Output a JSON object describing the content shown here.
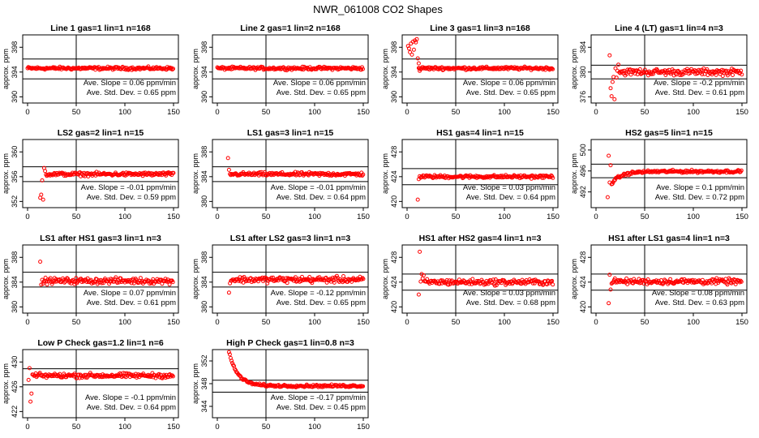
{
  "title": "NWR_061008  CO2 Shapes",
  "colors": {
    "points": "#ff0000",
    "axes": "#000000"
  },
  "chart_data": [
    {
      "type": "scatter",
      "title": "Line 1 gas=1 lin=1 n=168",
      "ylabel": "approx. ppm",
      "xlim": [
        -5,
        155
      ],
      "ylim": [
        389,
        400
      ],
      "yticks": [
        390,
        394,
        398
      ],
      "xticks": [
        0,
        50,
        100,
        150
      ],
      "vline": 50,
      "hlines": [
        396.1,
        392.9
      ],
      "slope": "Ave. Slope =  0.06  ppm/min",
      "stddev": "Ave. Std. Dev. =  0.65  ppm",
      "x_range": [
        0,
        150
      ],
      "initial": [],
      "settle": null,
      "base": 394.6,
      "noise": 0.2,
      "spike": 0
    },
    {
      "type": "scatter",
      "title": "Line 2 gas=1 lin=2 n=168",
      "ylabel": "approx. ppm",
      "xlim": [
        -5,
        155
      ],
      "ylim": [
        389,
        400
      ],
      "yticks": [
        390,
        394,
        398
      ],
      "xticks": [
        0,
        50,
        100,
        150
      ],
      "vline": 50,
      "hlines": [
        396.1,
        392.9
      ],
      "slope": "Ave. Slope =  0.06  ppm/min",
      "stddev": "Ave. Std. Dev. =  0.65  ppm",
      "x_range": [
        0,
        150
      ],
      "initial": [],
      "settle": null,
      "base": 394.6,
      "noise": 0.2,
      "spike": 0
    },
    {
      "type": "scatter",
      "title": "Line 3 gas=1 lin=3 n=168",
      "ylabel": "approx. ppm",
      "xlim": [
        -5,
        155
      ],
      "ylim": [
        389,
        400
      ],
      "yticks": [
        390,
        394,
        398
      ],
      "xticks": [
        0,
        50,
        100,
        150
      ],
      "vline": 50,
      "hlines": [
        396.1,
        392.9
      ],
      "slope": "Ave. Slope =  0.06  ppm/min",
      "stddev": "Ave. Std. Dev. =  0.65  ppm",
      "x_range": [
        12,
        150
      ],
      "initial": [
        [
          1,
          398.2
        ],
        [
          2,
          397.8
        ],
        [
          3,
          397.2
        ],
        [
          4,
          398.6
        ],
        [
          5,
          396.8
        ],
        [
          6,
          398.9
        ],
        [
          7,
          397.6
        ],
        [
          8,
          399.1
        ],
        [
          9,
          398.8
        ],
        [
          10,
          399.3
        ],
        [
          11,
          396.2
        ],
        [
          12,
          395.4
        ],
        [
          13,
          394.2
        ]
      ],
      "settle": null,
      "base": 394.6,
      "noise": 0.2,
      "spike": 0
    },
    {
      "type": "scatter",
      "title": "Line 4 (LT) gas=1 lin=4 n=3",
      "ylabel": "approx. ppm",
      "xlim": [
        -5,
        155
      ],
      "ylim": [
        375,
        386
      ],
      "yticks": [
        376,
        380,
        384
      ],
      "xticks": [
        0,
        50,
        100,
        150
      ],
      "vline": 50,
      "hlines": [
        381.1,
        378.9
      ],
      "slope": "Ave. Slope =  -0.2  ppm/min",
      "stddev": "Ave. Std. Dev. =  0.61  ppm",
      "x_range": [
        24,
        150
      ],
      "initial": [
        [
          14,
          382.7
        ],
        [
          15,
          377.4
        ],
        [
          16,
          376.1
        ],
        [
          17,
          378.4
        ],
        [
          18,
          379.2
        ],
        [
          19,
          375.6
        ],
        [
          20,
          380.6
        ],
        [
          21,
          379.1
        ],
        [
          22,
          380.2
        ],
        [
          23,
          381.2
        ]
      ],
      "settle": null,
      "base": 380.0,
      "noise": 0.45,
      "spike": 0
    },
    {
      "type": "scatter",
      "title": "LS2 gas=2 lin=1 n=15",
      "ylabel": "approx. ppm",
      "xlim": [
        -5,
        155
      ],
      "ylim": [
        351,
        362
      ],
      "yticks": [
        352,
        356,
        360
      ],
      "xticks": [
        0,
        50,
        100,
        150
      ],
      "vline": 50,
      "hlines": [
        357.6,
        355.2
      ],
      "slope": "Ave. Slope =  -0.01  ppm/min",
      "stddev": "Ave. Std. Dev. =  0.59  ppm",
      "x_range": [
        19,
        150
      ],
      "initial": [
        [
          13,
          352.6
        ],
        [
          14,
          353.1
        ],
        [
          15,
          355.4
        ],
        [
          16,
          352.3
        ],
        [
          17,
          357.4
        ],
        [
          18,
          356.9
        ]
      ],
      "settle": null,
      "base": 356.4,
      "noise": 0.25,
      "spike": 0
    },
    {
      "type": "scatter",
      "title": "LS1 gas=3 lin=1 n=15",
      "ylabel": "approx. ppm",
      "xlim": [
        -5,
        155
      ],
      "ylim": [
        379,
        390
      ],
      "yticks": [
        380,
        384,
        388
      ],
      "xticks": [
        0,
        50,
        100,
        150
      ],
      "vline": 50,
      "hlines": [
        385.6,
        383.2
      ],
      "slope": "Ave. Slope =  -0.01  ppm/min",
      "stddev": "Ave. Std. Dev. =  0.64  ppm",
      "x_range": [
        13,
        150
      ],
      "initial": [
        [
          11,
          387.0
        ],
        [
          12,
          385.1
        ]
      ],
      "settle": null,
      "base": 384.4,
      "noise": 0.25,
      "spike": 0
    },
    {
      "type": "scatter",
      "title": "HS1 gas=4 lin=1 n=15",
      "ylabel": "approx. ppm",
      "xlim": [
        -5,
        155
      ],
      "ylim": [
        419,
        430
      ],
      "yticks": [
        420,
        424,
        428
      ],
      "xticks": [
        0,
        50,
        100,
        150
      ],
      "vline": 50,
      "hlines": [
        425.3,
        422.7
      ],
      "slope": "Ave. Slope =  0.03  ppm/min",
      "stddev": "Ave. Std. Dev. =  0.64  ppm",
      "x_range": [
        13,
        150
      ],
      "initial": [
        [
          11,
          420.3
        ],
        [
          12,
          423.6
        ]
      ],
      "settle": null,
      "base": 424.0,
      "noise": 0.22,
      "spike": 0
    },
    {
      "type": "scatter",
      "title": "HS2 gas=5 lin=1 n=15",
      "ylabel": "approx. ppm",
      "xlim": [
        -5,
        155
      ],
      "ylim": [
        489,
        502
      ],
      "yticks": [
        492,
        496,
        500
      ],
      "xticks": [
        0,
        50,
        100,
        150
      ],
      "vline": 50,
      "hlines": [
        497.3,
        494.7
      ],
      "slope": "Ave. Slope =  0.1  ppm/min",
      "stddev": "Ave. Std. Dev. =  0.72  ppm",
      "x_range": [
        16,
        150
      ],
      "initial": [
        [
          12,
          491.0
        ],
        [
          13,
          498.9
        ],
        [
          14,
          493.8
        ],
        [
          15,
          497.1
        ]
      ],
      "settle": {
        "from": 493.6,
        "tau": 10
      },
      "base": 495.9,
      "noise": 0.22,
      "spike": 0
    },
    {
      "type": "scatter",
      "title": "LS1 after HS1 gas=3 lin=1 n=3",
      "ylabel": "approx. ppm",
      "xlim": [
        -5,
        155
      ],
      "ylim": [
        379,
        390
      ],
      "yticks": [
        380,
        384,
        388
      ],
      "xticks": [
        0,
        50,
        100,
        150
      ],
      "vline": 50,
      "hlines": [
        385.6,
        383.2
      ],
      "slope": "Ave. Slope =  0.07  ppm/min",
      "stddev": "Ave. Std. Dev. =  0.61  ppm",
      "x_range": [
        15,
        150
      ],
      "initial": [
        [
          13,
          387.3
        ],
        [
          14,
          383.6
        ]
      ],
      "settle": null,
      "base": 384.2,
      "noise": 0.4,
      "spike": 0
    },
    {
      "type": "scatter",
      "title": "LS1 after LS2 gas=3 lin=1 n=3",
      "ylabel": "approx. ppm",
      "xlim": [
        -5,
        155
      ],
      "ylim": [
        379,
        390
      ],
      "yticks": [
        380,
        384,
        388
      ],
      "xticks": [
        0,
        50,
        100,
        150
      ],
      "vline": 50,
      "hlines": [
        385.6,
        383.2
      ],
      "slope": "Ave. Slope =  -0.12  ppm/min",
      "stddev": "Ave. Std. Dev. =  0.65  ppm",
      "x_range": [
        14,
        150
      ],
      "initial": [
        [
          12,
          382.3
        ],
        [
          13,
          383.8
        ]
      ],
      "settle": null,
      "base": 384.4,
      "noise": 0.42,
      "spike": 0
    },
    {
      "type": "scatter",
      "title": "HS1 after HS2 gas=4 lin=1 n=3",
      "ylabel": "approx. ppm",
      "xlim": [
        -5,
        155
      ],
      "ylim": [
        419,
        430
      ],
      "yticks": [
        420,
        424,
        428
      ],
      "xticks": [
        0,
        50,
        100,
        150
      ],
      "vline": 50,
      "hlines": [
        425.3,
        422.7
      ],
      "slope": "Ave. Slope =  0.03  ppm/min",
      "stddev": "Ave. Std. Dev. =  0.68  ppm",
      "x_range": [
        18,
        150
      ],
      "initial": [
        [
          12,
          422.0
        ],
        [
          13,
          428.9
        ],
        [
          14,
          424.1
        ],
        [
          15,
          425.3
        ],
        [
          16,
          424.6
        ],
        [
          17,
          425.1
        ]
      ],
      "settle": null,
      "base": 424.0,
      "noise": 0.4,
      "spike": 0
    },
    {
      "type": "scatter",
      "title": "HS1 after LS1 gas=4 lin=1 n=3",
      "ylabel": "approx. ppm",
      "xlim": [
        -5,
        155
      ],
      "ylim": [
        419,
        430
      ],
      "yticks": [
        420,
        424,
        428
      ],
      "xticks": [
        0,
        50,
        100,
        150
      ],
      "vline": 50,
      "hlines": [
        425.3,
        422.7
      ],
      "slope": "Ave. Slope =  0.08  ppm/min",
      "stddev": "Ave. Std. Dev. =  0.63  ppm",
      "x_range": [
        16,
        150
      ],
      "initial": [
        [
          13,
          420.6
        ],
        [
          14,
          425.2
        ],
        [
          15,
          422.8
        ]
      ],
      "settle": null,
      "base": 424.1,
      "noise": 0.38,
      "spike": 0
    },
    {
      "type": "scatter",
      "title": "Low P Check gas=1.2 lin=1 n=6",
      "ylabel": "approx. ppm",
      "xlim": [
        -5,
        155
      ],
      "ylim": [
        421,
        432
      ],
      "yticks": [
        422,
        426,
        430
      ],
      "xticks": [
        0,
        50,
        100,
        150
      ],
      "vline": 50,
      "hlines": [
        428.9,
        426.3
      ],
      "slope": "Ave. Slope =  -0.1  ppm/min",
      "stddev": "Ave. Std. Dev. =  0.64  ppm",
      "x_range": [
        5,
        150
      ],
      "initial": [
        [
          1,
          427.1
        ],
        [
          2,
          429.0
        ],
        [
          3,
          423.6
        ],
        [
          4,
          424.9
        ]
      ],
      "settle": null,
      "base": 427.8,
      "noise": 0.32,
      "spike": 0
    },
    {
      "type": "scatter",
      "title": "High P Check gas=1 lin=0.8 n=3",
      "ylabel": "approx. ppm",
      "xlim": [
        -5,
        155
      ],
      "ylim": [
        342,
        354
      ],
      "yticks": [
        344,
        348,
        352
      ],
      "xticks": [
        0,
        50,
        100,
        150
      ],
      "vline": 50,
      "hlines": [
        348.6,
        346.5
      ],
      "slope": "Ave. Slope =  -0.17  ppm/min",
      "stddev": "Ave. Std. Dev. =  0.45  ppm",
      "x_range": [
        12,
        150
      ],
      "initial": [],
      "settle": {
        "from": 353.5,
        "tau": 9
      },
      "base": 347.6,
      "noise": 0.18,
      "spike": 0
    }
  ]
}
